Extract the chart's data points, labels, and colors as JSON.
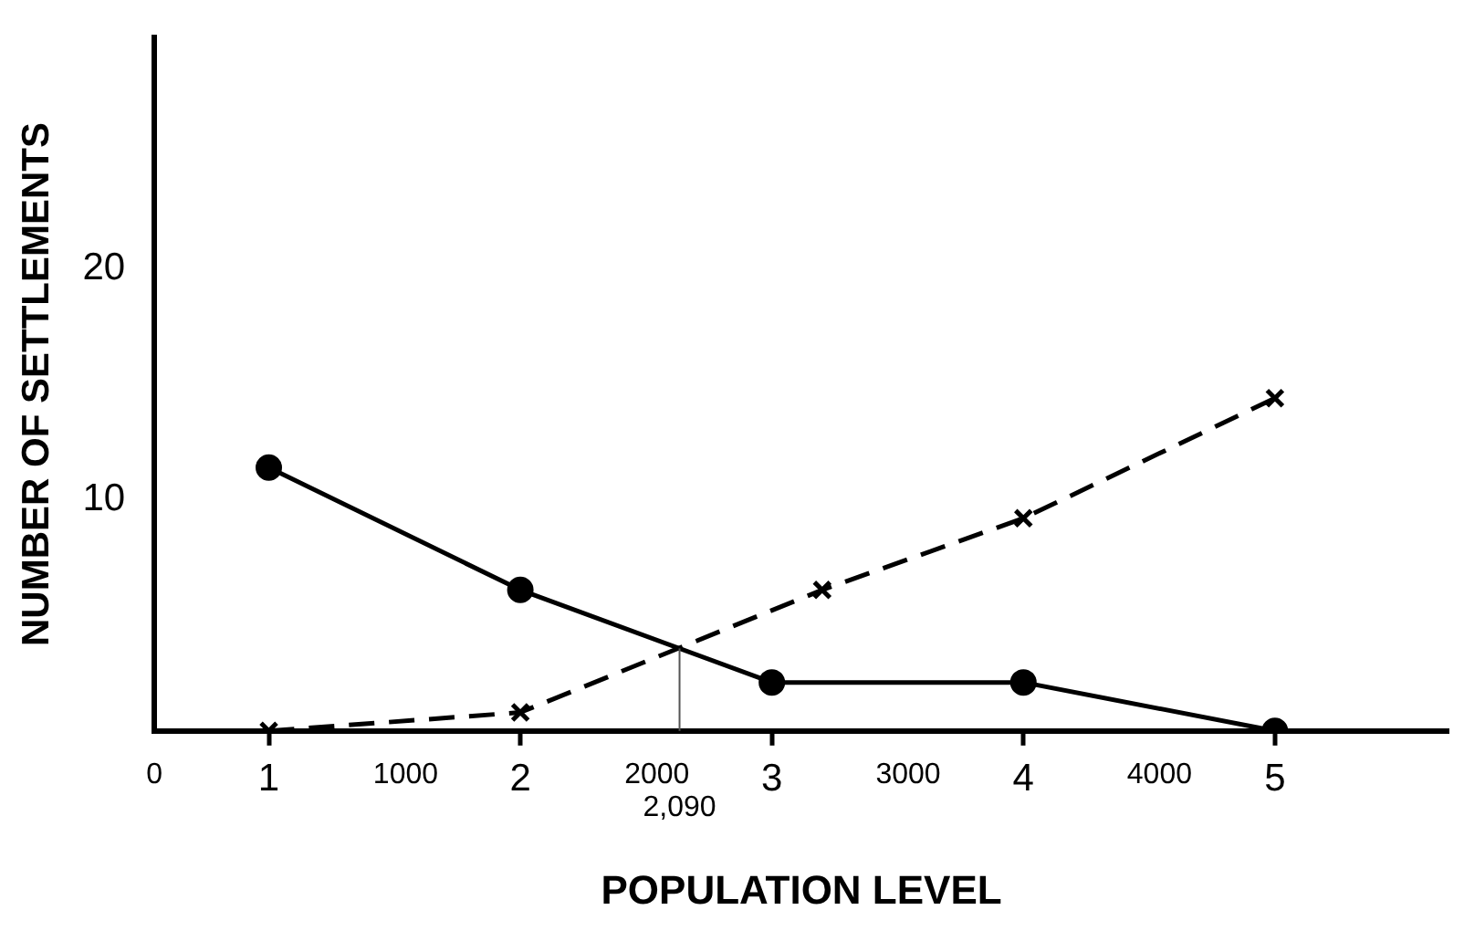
{
  "chart_data": {
    "type": "line",
    "xlabel": "POPULATION LEVEL",
    "ylabel": "NUMBER OF SETTLEMENTS",
    "xlim": [
      0.545,
      5.69
    ],
    "xticks": [
      1,
      2,
      3,
      4,
      5
    ],
    "x2lim": [
      0,
      5150
    ],
    "x2ticks": [
      0,
      1000,
      2000,
      3000,
      4000
    ],
    "ylim": [
      0,
      30
    ],
    "yticks": [
      10,
      20
    ],
    "series": [
      {
        "x": [
          1,
          2,
          3,
          4,
          5
        ],
        "values": [
          11.4,
          6.1,
          2.1,
          2.1,
          0
        ],
        "color": "#000000",
        "marker": "circle",
        "line_style": "solid"
      },
      {
        "x": [
          1,
          2,
          3.2,
          4,
          5
        ],
        "values": [
          0,
          0.8,
          6.1,
          9.2,
          14.4
        ],
        "color": "#000000",
        "marker": "cross",
        "line_style": "dashed"
      }
    ],
    "ref_lines": [
      {
        "axis": "x2",
        "value": 2090,
        "label": "2,090",
        "color": "#555555"
      }
    ],
    "grid": false,
    "legend": false
  }
}
